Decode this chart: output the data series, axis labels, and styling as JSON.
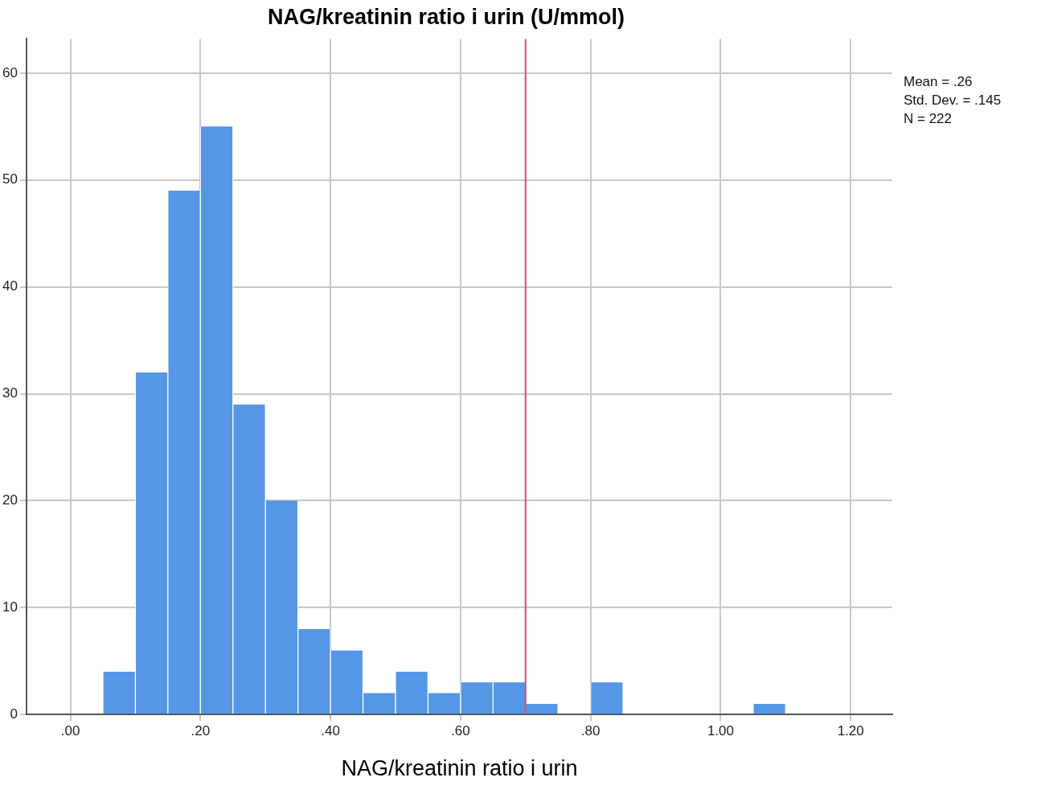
{
  "chart_data": {
    "type": "histogram",
    "title": "NAG/kreatinin ratio i urin (U/mmol)",
    "xlabel": "NAG/kreatinin ratio i urin",
    "bins": [
      0.05,
      0.1,
      0.15,
      0.2,
      0.25,
      0.3,
      0.35,
      0.4,
      0.45,
      0.5,
      0.55,
      0.6,
      0.65,
      0.7,
      0.75,
      0.8,
      0.85,
      0.9,
      0.95,
      1.0,
      1.05,
      1.1
    ],
    "values": [
      4,
      32,
      49,
      55,
      29,
      20,
      8,
      6,
      2,
      4,
      2,
      3,
      3,
      1,
      0,
      3,
      0,
      0,
      0,
      0,
      1
    ],
    "color": "#5596e6",
    "xlim": [
      -0.0675,
      1.264
    ],
    "xticks": [
      {
        "value": 0,
        "label": ".00"
      },
      {
        "value": 0.2,
        "label": ".20"
      },
      {
        "value": 0.4,
        "label": ".40"
      },
      {
        "value": 0.6,
        "label": ".60"
      },
      {
        "value": 0.8,
        "label": ".80"
      },
      {
        "value": 1.0,
        "label": "1.00"
      },
      {
        "value": 1.2,
        "label": "1.20"
      }
    ],
    "ylim": [
      0,
      63.2
    ],
    "yticks": [
      0,
      10,
      20,
      30,
      40,
      50,
      60
    ],
    "grid": true,
    "legend": false,
    "ref_lines": [
      {
        "axis": "x",
        "value": 0.7,
        "color": "#e0456a"
      }
    ],
    "annotations": [
      "Mean = .26",
      "Std. Dev. = .145",
      "N = 222"
    ]
  }
}
